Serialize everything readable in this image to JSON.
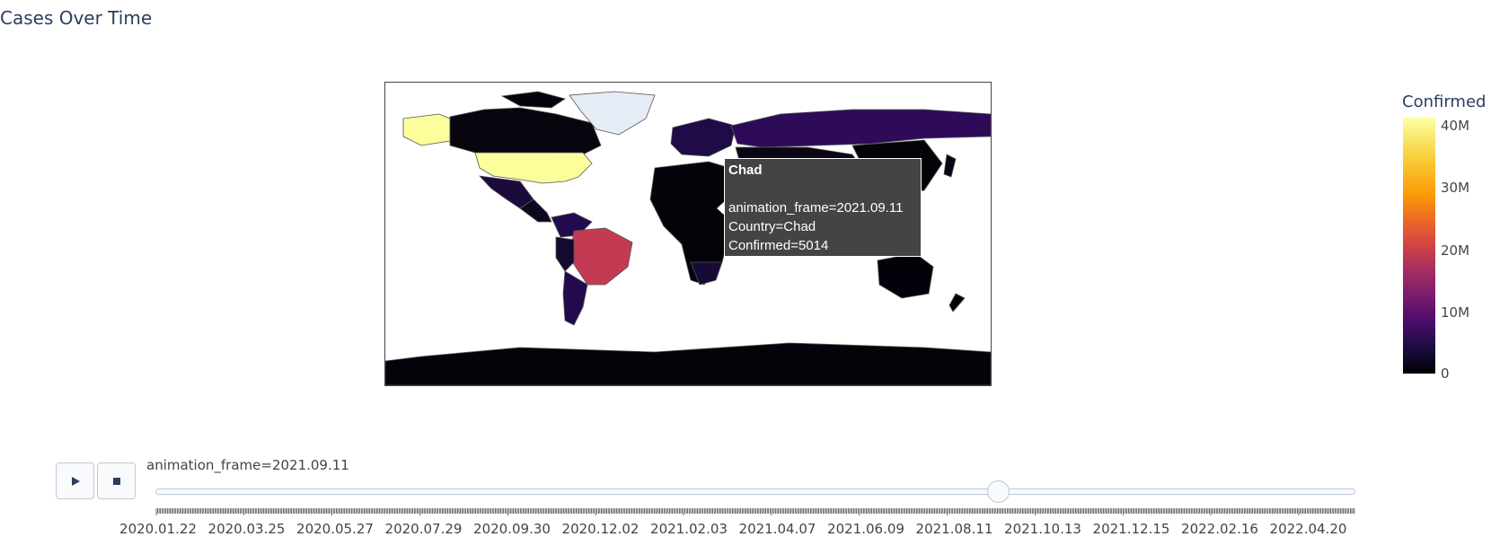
{
  "title": "Cases Over Time",
  "colorbar": {
    "title": "Confirmed",
    "ticks": [
      "40M",
      "30M",
      "20M",
      "10M",
      "0"
    ]
  },
  "tooltip": {
    "country_name": "Chad",
    "frame_line": "animation_frame=2021.09.11",
    "country_line": "Country=Chad",
    "confirmed_line": "Confirmed=5014"
  },
  "controls": {
    "play_icon": "play-icon",
    "stop_icon": "stop-icon"
  },
  "slider": {
    "label": "animation_frame=2021.09.11",
    "current_frame": "2021.09.11",
    "tick_labels": [
      "2020.01.22",
      "2020.03.25",
      "2020.05.27",
      "2020.07.29",
      "2020.09.30",
      "2020.12.02",
      "2021.02.03",
      "2021.04.07",
      "2021.06.09",
      "2021.08.11",
      "2021.10.13",
      "2021.12.15",
      "2022.02.16",
      "2022.04.20"
    ]
  },
  "chart_data": {
    "type": "choropleth",
    "title": "Cases Over Time",
    "colorscale": "inferno",
    "color_range": [
      0,
      42000000
    ],
    "frame": "2021.09.11",
    "highlight": {
      "country": "Chad",
      "confirmed": 5014
    },
    "regions": [
      {
        "name": "United States",
        "confirmed": 41000000,
        "color": "#fcfe9c"
      },
      {
        "name": "Alaska",
        "confirmed": 41000000,
        "color": "#fcfe9c"
      },
      {
        "name": "Brazil",
        "confirmed": 21000000,
        "color": "#c33a52"
      },
      {
        "name": "Russia",
        "confirmed": 7200000,
        "color": "#2d0b59"
      },
      {
        "name": "Argentina",
        "confirmed": 5200000,
        "color": "#230a4e"
      },
      {
        "name": "Colombia",
        "confirmed": 4900000,
        "color": "#230a4e"
      },
      {
        "name": "Mexico",
        "confirmed": 3500000,
        "color": "#1b0b3b"
      },
      {
        "name": "South Africa",
        "confirmed": 2800000,
        "color": "#180a36"
      },
      {
        "name": "Peru",
        "confirmed": 2100000,
        "color": "#14092e"
      },
      {
        "name": "Canada",
        "confirmed": 1500000,
        "color": "#08050f"
      },
      {
        "name": "Australia",
        "confirmed": 80000,
        "color": "#02020a"
      },
      {
        "name": "Greenland",
        "confirmed": null,
        "color": "#e5ecf6"
      }
    ]
  }
}
